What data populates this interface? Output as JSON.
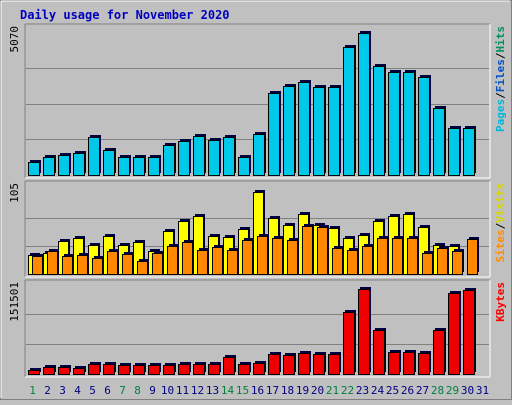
{
  "chart_data": {
    "type": "bar",
    "title": "Daily usage for November 2020",
    "categories": [
      "1",
      "2",
      "3",
      "4",
      "5",
      "6",
      "7",
      "8",
      "9",
      "10",
      "11",
      "12",
      "13",
      "14",
      "15",
      "16",
      "17",
      "18",
      "19",
      "20",
      "21",
      "22",
      "23",
      "24",
      "25",
      "26",
      "27",
      "28",
      "29",
      "30",
      "31"
    ],
    "weekend_days": [
      "1",
      "7",
      "8",
      "14",
      "15",
      "21",
      "22",
      "28",
      "29"
    ],
    "panels": [
      {
        "name": "top",
        "ymax_label": "5070",
        "ymax": 5070,
        "legend": [
          {
            "text": "Pages",
            "color": "#00b8d8"
          },
          {
            "text": "/",
            "color": "#000000"
          },
          {
            "text": "Files",
            "color": "#0050c8"
          },
          {
            "text": "/",
            "color": "#000000"
          },
          {
            "text": "Hits",
            "color": "#009060"
          }
        ],
        "series": [
          {
            "name": "Hits",
            "color": "#00c8e8",
            "values": [
              470,
              630,
              700,
              770,
              1350,
              890,
              650,
              630,
              650,
              1050,
              1210,
              1390,
              1250,
              1360,
              650,
              1450,
              2890,
              3160,
              3300,
              3120,
              3120,
              4530,
              5020,
              3860,
              3650,
              3650,
              3460,
              2360,
              1650,
              1650,
              0
            ]
          }
        ]
      },
      {
        "name": "middle",
        "ymax_label": "105",
        "ymax": 105,
        "legend": [
          {
            "text": "Sites",
            "color": "#ff8c00"
          },
          {
            "text": "/",
            "color": "#000000"
          },
          {
            "text": "Visits",
            "color": "#d8d800"
          }
        ],
        "series": [
          {
            "name": "Visits",
            "color": "#ffff00",
            "values": [
              24,
              26,
              41,
              44,
              36,
              47,
              36,
              39,
              28,
              53,
              65,
              72,
              47,
              46,
              55,
              101,
              69,
              61,
              74,
              60,
              57,
              45,
              48,
              66,
              72,
              74,
              58,
              36,
              35,
              0,
              0
            ]
          },
          {
            "name": "Sites",
            "color": "#ff8800",
            "values": [
              22,
              28,
              22,
              24,
              20,
              29,
              25,
              16,
              26,
              34,
              40,
              30,
              33,
              30,
              42,
              47,
              45,
              42,
              59,
              58,
              32,
              30,
              34,
              45,
              44,
              45,
              26,
              32,
              28,
              43,
              0
            ]
          }
        ]
      },
      {
        "name": "bottom",
        "ymax_label": "151501",
        "ymax": 151501,
        "legend": [
          {
            "text": "KBytes",
            "color": "#ff0000"
          }
        ],
        "series": [
          {
            "name": "KBytes",
            "color": "#ee0000",
            "values": [
              7000,
              12000,
              12000,
              11000,
              18000,
              18000,
              15000,
              15000,
              15000,
              16000,
              17000,
              17000,
              17000,
              30000,
              17000,
              19000,
              35000,
              34000,
              37000,
              36000,
              35000,
              110000,
              150000,
              78000,
              38000,
              39000,
              37000,
              78000,
              143000,
              148000,
              0
            ]
          }
        ]
      }
    ]
  }
}
